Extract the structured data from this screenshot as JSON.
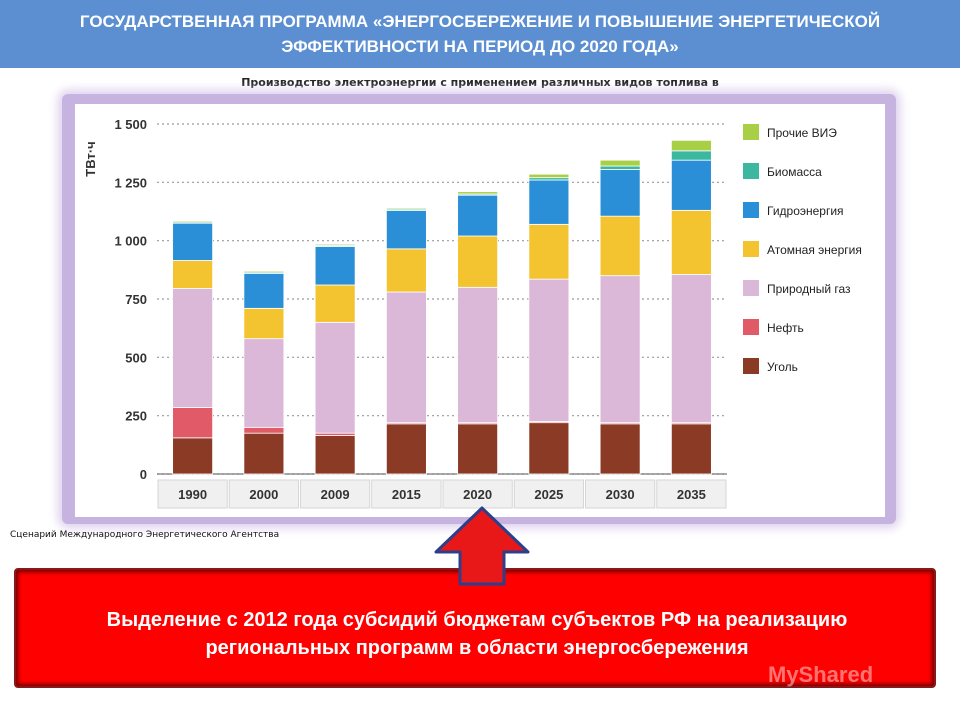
{
  "header": {
    "title": "ГОСУДАРСТВЕННАЯ ПРОГРАММА «ЭНЕРГОСБЕРЕЖЕНИЕ И ПОВЫШЕНИЕ ЭНЕРГЕТИЧЕСКОЙ ЭФФЕКТИВНОСТИ НА ПЕРИОД ДО 2020 ГОДА»"
  },
  "chart_caption": "Производство электроэнергии с применением различных видов топлива в России",
  "source_note": "Сценарий Международного Энергетического Агентства",
  "callout": {
    "text": "Выделение с 2012 года субсидий бюджетам субъектов РФ на реализацию региональных программ в области энергосбережения"
  },
  "watermark": "MyShared",
  "colors": {
    "title_bar": "#5b8fd2",
    "callout_bg": "#ff0000",
    "arrow": "#e81818"
  },
  "chart_data": {
    "type": "bar",
    "stacked": true,
    "ylabel": "ТВт·ч",
    "xlabel": "",
    "ylim": [
      0,
      1500
    ],
    "yticks": [
      0,
      250,
      500,
      750,
      1000,
      1250,
      1500
    ],
    "ytick_labels": [
      "0",
      "250",
      "500",
      "750",
      "1 000",
      "1 250",
      "1 500"
    ],
    "grid": "horizontal dotted",
    "legend_position": "right",
    "categories": [
      "1990",
      "2000",
      "2009",
      "2015",
      "2020",
      "2025",
      "2030",
      "2035"
    ],
    "series": [
      {
        "name": "Уголь",
        "color": "#8b3a26",
        "values": [
          155,
          175,
          165,
          215,
          215,
          220,
          215,
          215
        ]
      },
      {
        "name": "Нефть",
        "color": "#e05a68",
        "values": [
          130,
          25,
          10,
          5,
          5,
          5,
          5,
          5
        ]
      },
      {
        "name": "Природный газ",
        "color": "#dbb7d8",
        "values": [
          510,
          380,
          475,
          560,
          580,
          610,
          630,
          635
        ]
      },
      {
        "name": "Атомная энергия",
        "color": "#f4c430",
        "values": [
          120,
          130,
          160,
          185,
          220,
          235,
          255,
          275
        ]
      },
      {
        "name": "Гидроэнергия",
        "color": "#2a8fd6",
        "values": [
          160,
          150,
          165,
          165,
          175,
          190,
          200,
          215
        ]
      },
      {
        "name": "Биомасса",
        "color": "#3cb8a0",
        "values": [
          5,
          5,
          5,
          5,
          5,
          10,
          15,
          40
        ]
      },
      {
        "name": "Прочие ВИЭ",
        "color": "#a8cf45",
        "values": [
          5,
          5,
          5,
          5,
          10,
          15,
          25,
          45
        ]
      }
    ]
  }
}
